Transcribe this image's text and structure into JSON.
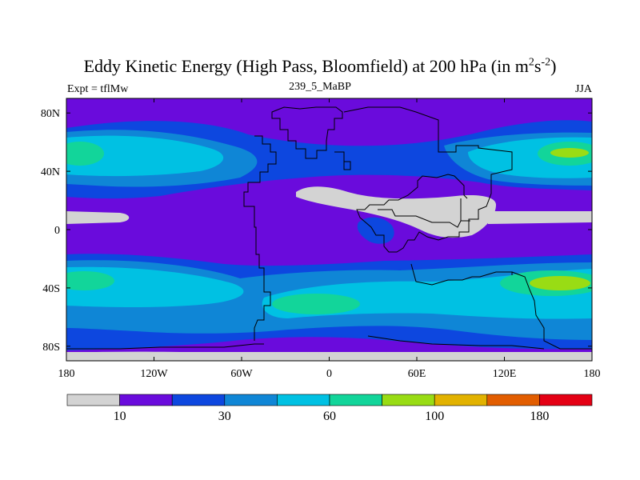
{
  "chart_data": {
    "type": "heatmap",
    "title_main": "Eddy Kinetic Energy (High Pass, Bloomfield) at 200 hPa (in m",
    "title_sup1": "2",
    "title_mid": "s",
    "title_sup2": "-2",
    "title_end": ")",
    "subtitle": "239_5_MaBP",
    "left_label": "Expt = tflMw",
    "right_label": "JJA",
    "x_ticks": [
      {
        "lon": -180,
        "label": "180"
      },
      {
        "lon": -120,
        "label": "120W"
      },
      {
        "lon": -60,
        "label": "60W"
      },
      {
        "lon": 0,
        "label": "0"
      },
      {
        "lon": 60,
        "label": "60E"
      },
      {
        "lon": 120,
        "label": "120E"
      },
      {
        "lon": 180,
        "label": "180"
      }
    ],
    "y_ticks": [
      {
        "lat": 80,
        "label": "80N"
      },
      {
        "lat": 40,
        "label": "40N"
      },
      {
        "lat": 0,
        "label": "0"
      },
      {
        "lat": -40,
        "label": "40S"
      },
      {
        "lat": -80,
        "label": "80S"
      }
    ],
    "xlim": [
      -180,
      180
    ],
    "ylim": [
      -90,
      90
    ],
    "colorbar": {
      "colors": [
        "#d3d3d3",
        "#6a0bdc",
        "#0d47df",
        "#0f86d6",
        "#00c1e3",
        "#12d59a",
        "#99dc14",
        "#e2b200",
        "#e25d00",
        "#e40014"
      ],
      "labels": [
        {
          "boundary": 1,
          "label": "10"
        },
        {
          "boundary": 3,
          "label": "30"
        },
        {
          "boundary": 5,
          "label": "60"
        },
        {
          "boundary": 7,
          "label": "100"
        },
        {
          "boundary": 9,
          "label": "180"
        }
      ]
    }
  }
}
